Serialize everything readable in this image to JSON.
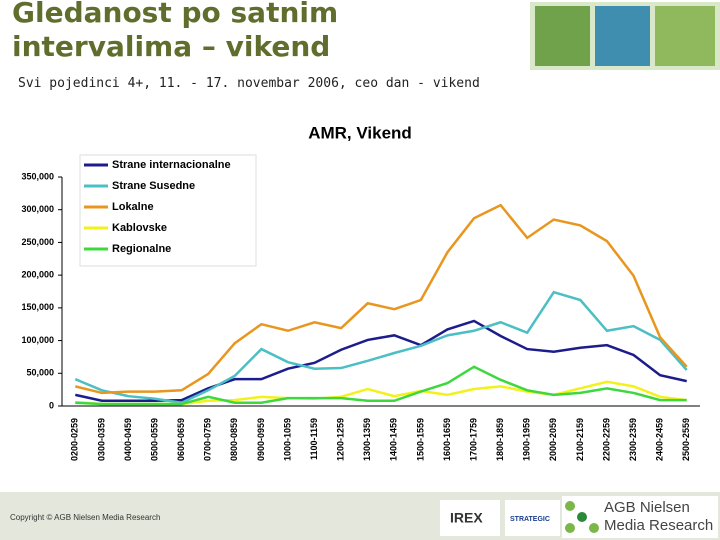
{
  "slide": {
    "title": "Gledanost po satnim intervalima – vikend",
    "subtitle": "Svi pojedinci 4+, 11. - 17. novembar 2006, ceo dan - vikend",
    "copyright": "Copyright © AGB Nielsen Media Research",
    "logo_irex": "IREX",
    "logo_strategic": "STRATEGIC",
    "logo_agb_line1": "AGB Nielsen",
    "logo_agb_line2": "Media Research"
  },
  "chart_data": {
    "type": "line",
    "title": "AMR, Vikend",
    "categories": [
      "0200-0259",
      "0300-0359",
      "0400-0459",
      "0500-0559",
      "0600-0659",
      "0700-0759",
      "0800-0859",
      "0900-0959",
      "1000-1059",
      "1100-1159",
      "1200-1259",
      "1300-1359",
      "1400-1459",
      "1500-1559",
      "1600-1659",
      "1700-1759",
      "1800-1859",
      "1900-1959",
      "2000-2059",
      "2100-2159",
      "2200-2259",
      "2300-2359",
      "2400-2459",
      "2500-2559"
    ],
    "series": [
      {
        "name": "Strane internacionalne",
        "color": "#1c1c8c",
        "values": [
          17000,
          8000,
          8000,
          8000,
          9000,
          27000,
          41000,
          41000,
          57000,
          66000,
          86000,
          101000,
          108000,
          93000,
          117000,
          130000,
          107000,
          87000,
          83000,
          89000,
          93000,
          78000,
          47000,
          38000
        ]
      },
      {
        "name": "Strane Susedne",
        "color": "#4bbfc4",
        "values": [
          41000,
          24000,
          15000,
          11000,
          5000,
          24000,
          46000,
          87000,
          67000,
          57000,
          58000,
          69000,
          81000,
          92000,
          108000,
          115000,
          128000,
          112000,
          174000,
          162000,
          115000,
          122000,
          101000,
          55000
        ]
      },
      {
        "name": "Lokalne",
        "color": "#e8961e",
        "values": [
          30000,
          20000,
          22000,
          22000,
          24000,
          49000,
          96000,
          125000,
          115000,
          128000,
          119000,
          157000,
          148000,
          162000,
          235000,
          287000,
          307000,
          257000,
          285000,
          276000,
          252000,
          199000,
          105000,
          60000
        ]
      },
      {
        "name": "Kablovske",
        "color": "#f2f21a",
        "values": [
          6000,
          3000,
          3000,
          3000,
          3000,
          8000,
          9000,
          14000,
          12000,
          11000,
          14000,
          26000,
          15000,
          23000,
          17000,
          26000,
          30000,
          22000,
          17000,
          27000,
          37000,
          30000,
          14000,
          9000
        ]
      },
      {
        "name": "Regionalne",
        "color": "#3ed83e",
        "values": [
          5000,
          3000,
          3000,
          3000,
          3000,
          14000,
          5000,
          5000,
          12000,
          12000,
          12000,
          8000,
          8000,
          22000,
          35000,
          60000,
          40000,
          24000,
          17000,
          20000,
          27000,
          20000,
          9000,
          9000
        ]
      }
    ],
    "ylim": [
      0,
      350000
    ],
    "yticks": [
      0,
      {
        "value": 50000,
        "label": "50,000"
      },
      {
        "value": 100000,
        "label": "100,000"
      },
      {
        "value": 150000,
        "label": "150,000"
      },
      {
        "value": 200000,
        "label": "200,000"
      },
      {
        "value": 250000,
        "label": "250,000"
      },
      {
        "value": 300000,
        "label": "300,000"
      },
      {
        "value": 350000,
        "label": "350,000"
      }
    ],
    "grid": false,
    "legend": "upper left"
  }
}
